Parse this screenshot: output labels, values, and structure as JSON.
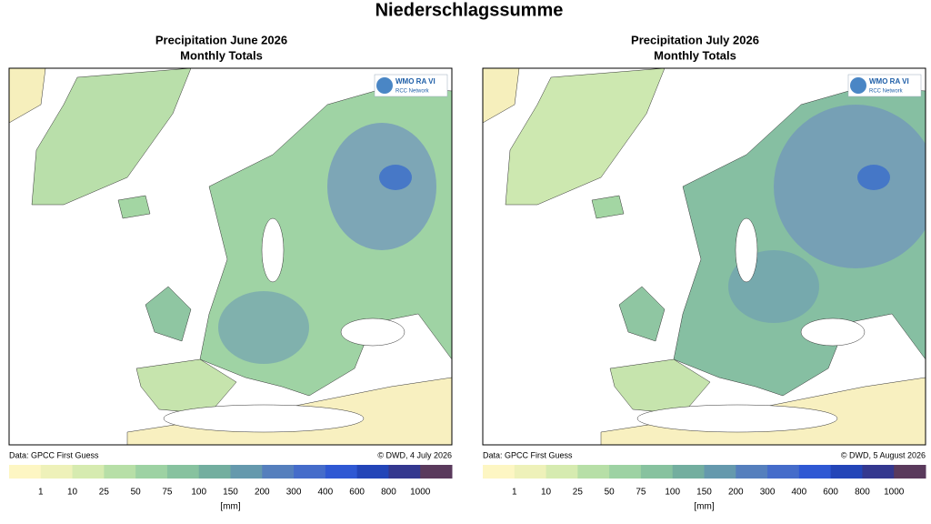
{
  "title": "Niederschlagssumme",
  "panels": [
    {
      "title": "Precipitation June 2026",
      "subtitle": "Monthly Totals",
      "source": "Data: GPCC First Guess",
      "credit": "© DWD, 4 July 2026"
    },
    {
      "title": "Precipitation July 2026",
      "subtitle": "Monthly Totals",
      "source": "Data: GPCC First Guess",
      "credit": "© DWD, 5 August 2026"
    }
  ],
  "logo": {
    "line1": "WMO RA VI",
    "line2": "RCC Network"
  },
  "colorbar": {
    "ticks": [
      1,
      10,
      25,
      50,
      75,
      100,
      150,
      200,
      300,
      400,
      600,
      800,
      1000
    ],
    "unit": "[mm]"
  }
}
